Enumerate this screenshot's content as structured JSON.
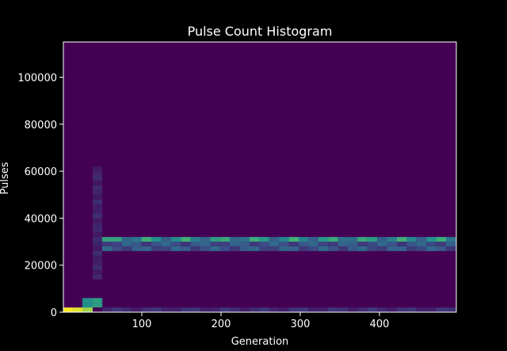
{
  "chart_data": {
    "type": "heatmap",
    "title": "Pulse Count Histogram",
    "xlabel": "Generation",
    "ylabel": "Pulses",
    "xlim": [
      1,
      497
    ],
    "ylim": [
      0,
      115000
    ],
    "xticks": [
      100,
      200,
      300,
      400
    ],
    "yticks": [
      0,
      20000,
      40000,
      60000,
      80000,
      100000
    ],
    "xtick_labels": [
      "100",
      "200",
      "300",
      "400"
    ],
    "ytick_labels": [
      "0",
      "20000",
      "40000",
      "60000",
      "80000",
      "100000"
    ],
    "background_color": "#440154",
    "colormap": "viridis",
    "x_bin_width": 12.4,
    "y_bin_width": 2000,
    "bands": [
      {
        "x_range": [
          1,
          38
        ],
        "y_range": [
          0,
          2000
        ],
        "intensity": [
          1.0,
          0.95,
          0.85
        ]
      },
      {
        "x_range": [
          25,
          50
        ],
        "y_range": [
          2000,
          6000
        ],
        "intensity": [
          0.5,
          0.55
        ]
      },
      {
        "x_range": [
          50,
          497
        ],
        "y_range": [
          0,
          2000
        ],
        "intensity": 0.15,
        "description": "baseline"
      },
      {
        "x_range": [
          50,
          497
        ],
        "y_range": [
          30000,
          32000
        ],
        "intensity": 0.55,
        "description": "main band"
      },
      {
        "x_range": [
          50,
          497
        ],
        "y_range": [
          26000,
          30000
        ],
        "intensity": 0.3,
        "description": "secondary band"
      },
      {
        "x_range": [
          38,
          50
        ],
        "y_range": [
          14000,
          62000
        ],
        "intensity": 0.12,
        "description": "sparse column"
      }
    ],
    "grid": false
  }
}
